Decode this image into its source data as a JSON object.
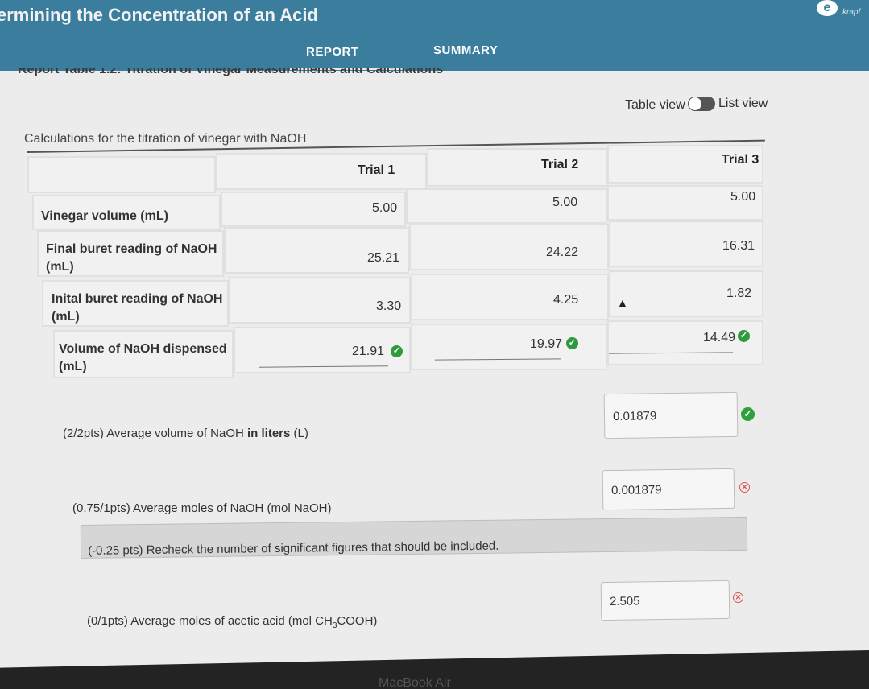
{
  "header": {
    "title": "ermining the Concentration of an Acid",
    "tabs": [
      "REPORT",
      "SUMMARY"
    ],
    "brand": "krapf",
    "logo_letter": "e"
  },
  "section_heading": "Report Table 1.2: Titration of Vinegar Measurements and Calculations",
  "view_toggle": {
    "table_label": "Table view",
    "list_label": "List view"
  },
  "table": {
    "caption": "Calculations for the titration of vinegar with NaOH",
    "columns": [
      "Trial 1",
      "Trial 2",
      "Trial 3"
    ],
    "rows": [
      {
        "label": "Vinegar volume (mL)",
        "values": [
          "5.00",
          "5.00",
          "5.00"
        ]
      },
      {
        "label_line1": "Final buret reading of NaOH",
        "label_line2": "(mL)",
        "values": [
          "25.21",
          "24.22",
          "16.31"
        ]
      },
      {
        "label_line1": "Inital buret reading of NaOH",
        "label_line2": "(mL)",
        "values": [
          "3.30",
          "4.25",
          "1.82"
        ]
      },
      {
        "label_line1": "Volume of NaOH dispensed",
        "label_line2": "(mL)",
        "values": [
          "21.91",
          "19.97",
          "14.49"
        ]
      }
    ]
  },
  "questions": [
    {
      "text_pre": "(2/2pts)  Average volume of NaOH ",
      "text_bold": "in liters",
      "text_post": " (L)",
      "answer": "0.01879",
      "status": "correct"
    },
    {
      "text": "(0.75/1pts)  Average moles of NaOH (mol NaOH)",
      "answer": "0.001879",
      "status": "incorrect"
    },
    {
      "text_pre": "(0/1pts)  Average moles of acetic acid (mol CH",
      "sub1": "3",
      "text_mid": "COOH)",
      "answer": "2.505",
      "status": "incorrect"
    }
  ],
  "feedback": "(-0.25 pts) Recheck the number of significant figures that should be included.",
  "bezel_label": "MacBook Air",
  "colors": {
    "header": "#3a7d9c",
    "correct": "#2e9a3e",
    "incorrect": "#d9534f"
  }
}
